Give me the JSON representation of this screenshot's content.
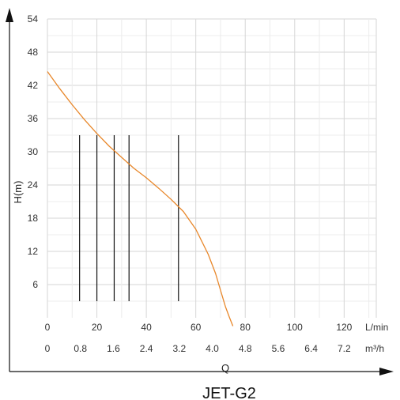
{
  "chart_data": {
    "type": "line",
    "title": "JET-G2",
    "ylabel": "H(m)",
    "xlabel": "Q",
    "ylim": [
      0,
      54
    ],
    "yticks": [
      6,
      12,
      18,
      24,
      30,
      36,
      42,
      48,
      54
    ],
    "x_lmin": {
      "unit": "L/min",
      "ticks": [
        0,
        20,
        40,
        60,
        80,
        100,
        120
      ],
      "range": [
        0,
        133
      ]
    },
    "x_m3h": {
      "unit": "m³/h",
      "ticks": [
        "0",
        "0.8",
        "1.6",
        "2.4",
        "3.2",
        "4.0",
        "4.8",
        "5.6",
        "6.4",
        "7.2"
      ]
    },
    "series": [
      {
        "color": "#e8872a",
        "x": [
          0,
          5,
          10,
          15,
          20,
          25,
          30,
          35,
          40,
          45,
          50,
          55,
          60,
          65,
          68,
          70,
          72,
          73.5,
          75
        ],
        "y": [
          44.5,
          41.4,
          38.5,
          35.8,
          33.3,
          31.0,
          29.0,
          27.0,
          25.3,
          23.4,
          21.4,
          19.2,
          16.0,
          11.5,
          8.0,
          5.0,
          2.0,
          0.2,
          -1.5
        ]
      }
    ],
    "vertical_markers": {
      "x": [
        13,
        20,
        27,
        33,
        53
      ],
      "y_from": 3,
      "y_to": 33
    },
    "grid": true
  }
}
